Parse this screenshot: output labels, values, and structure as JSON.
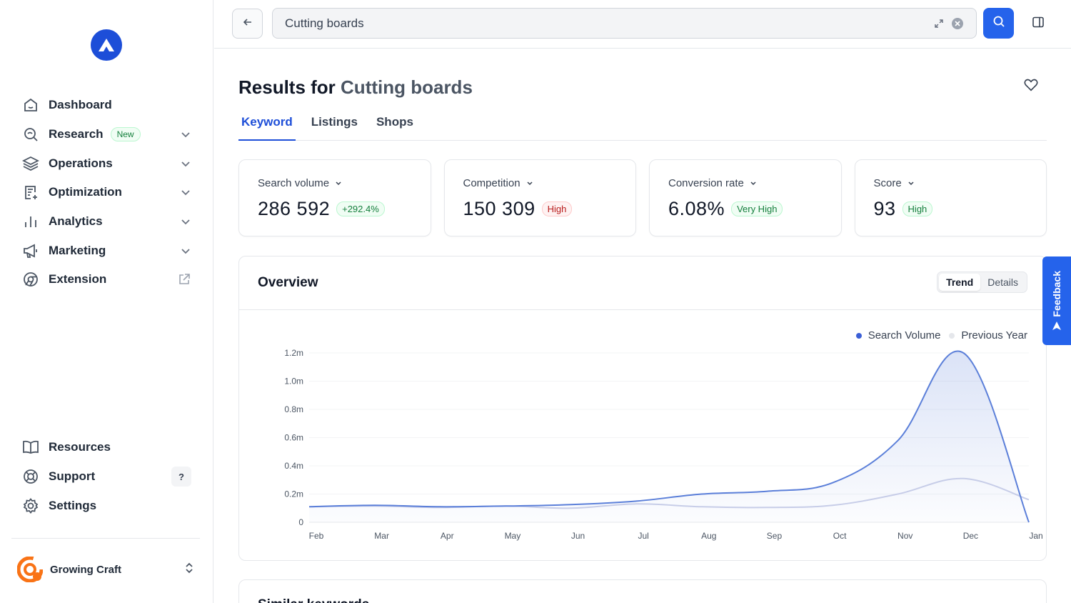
{
  "sidebar": {
    "nav": [
      {
        "label": "Dashboard",
        "icon": "home-icon"
      },
      {
        "label": "Research",
        "icon": "search-icon",
        "badge": "New"
      },
      {
        "label": "Operations",
        "icon": "layers-icon"
      },
      {
        "label": "Optimization",
        "icon": "document-edit-icon"
      },
      {
        "label": "Analytics",
        "icon": "bar-chart-icon"
      },
      {
        "label": "Marketing",
        "icon": "megaphone-icon"
      },
      {
        "label": "Extension",
        "icon": "chrome-icon"
      }
    ],
    "bottom": [
      {
        "label": "Resources",
        "icon": "book-icon"
      },
      {
        "label": "Support",
        "icon": "lifebuoy-icon",
        "hint": "?"
      },
      {
        "label": "Settings",
        "icon": "gear-icon"
      }
    ],
    "account": {
      "name": "Growing Craft"
    }
  },
  "topbar": {
    "search_value": "Cutting boards"
  },
  "main": {
    "title_prefix": "Results for ",
    "title_keyword": "Cutting boards",
    "tabs": [
      "Keyword",
      "Listings",
      "Shops"
    ],
    "active_tab": "Keyword",
    "cards": [
      {
        "label": "Search volume",
        "value": "286 592",
        "badge": "+292.4%",
        "badge_color": "green"
      },
      {
        "label": "Competition",
        "value": "150 309",
        "badge": "High",
        "badge_color": "red"
      },
      {
        "label": "Conversion rate",
        "value": "6.08%",
        "badge": "Very High",
        "badge_color": "green"
      },
      {
        "label": "Score",
        "value": "93",
        "badge": "High",
        "badge_color": "green"
      }
    ],
    "overview": {
      "title": "Overview",
      "toggle": [
        "Trend",
        "Details"
      ],
      "active": "Trend"
    },
    "similar_title": "Similar keywords"
  },
  "feedback_label": "Feedback",
  "colors": {
    "accent": "#2563eb",
    "series1": "#5b7fd9",
    "series2": "#c7cde8"
  },
  "chart_data": {
    "type": "area",
    "categories": [
      "Feb",
      "Mar",
      "Apr",
      "May",
      "Jun",
      "Jul",
      "Aug",
      "Sep",
      "Oct",
      "Nov",
      "Dec",
      "Jan"
    ],
    "yticks": [
      "0",
      "0.2m",
      "0.4m",
      "0.6m",
      "0.8m",
      "1.0m",
      "1.2m"
    ],
    "ylim": [
      0,
      1200000
    ],
    "legend": "top-right",
    "series": [
      {
        "name": "Search Volume",
        "values": [
          110000,
          120000,
          110000,
          115000,
          125000,
          150000,
          200000,
          220000,
          280000,
          580000,
          1200000,
          0
        ]
      },
      {
        "name": "Previous Year",
        "values": [
          110000,
          115000,
          105000,
          115000,
          100000,
          130000,
          110000,
          105000,
          120000,
          200000,
          310000,
          160000
        ]
      }
    ]
  }
}
